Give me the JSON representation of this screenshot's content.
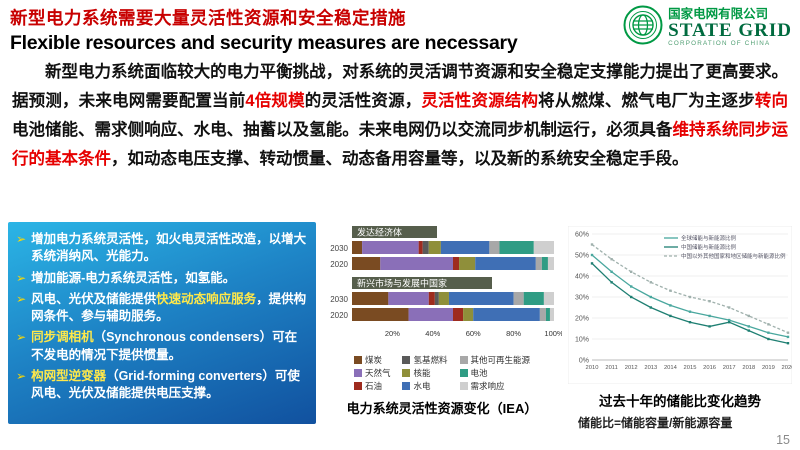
{
  "header": {
    "title_zh": "新型电力系统需要大量灵活性资源和安全稳定措施",
    "title_en": "Flexible resources and security measures are necessary",
    "logo": {
      "company_zh": "国家电网有限公司",
      "company_en": "STATE GRID",
      "company_sub": "CORPORATION OF CHINA",
      "brand_green": "#009944"
    }
  },
  "paragraph": {
    "segments": [
      {
        "text": "新型电力系统面临较大的电力平衡挑战，对系统的灵活调节资源和安全稳定支撑能力提出了更高要求。据预测，未来电网需要配置当前",
        "style": "normal"
      },
      {
        "text": "4倍规模",
        "style": "red"
      },
      {
        "text": "的灵活性资源，",
        "style": "normal"
      },
      {
        "text": "灵活性资源结构",
        "style": "red"
      },
      {
        "text": "将从燃煤、燃气电厂为主逐步",
        "style": "normal"
      },
      {
        "text": "转向",
        "style": "red"
      },
      {
        "text": "电池储能、需求侧响应、水电、抽蓄以及氢能。未来电网仍以交流同步机制运行，必须具备",
        "style": "normal"
      },
      {
        "text": "维持系统同步运行的基本条件",
        "style": "red"
      },
      {
        "text": "，如动态电压支撑、转动惯量、动态备用容量等，以及新的系统安全稳定手段。",
        "style": "normal"
      }
    ]
  },
  "bullet_arrow": "➢",
  "bullets": [
    {
      "segments": [
        {
          "text": "增加电力系统灵活性，如火电灵活性改造，以增大系统消纳风、光能力。",
          "highlight": false
        }
      ]
    },
    {
      "segments": [
        {
          "text": "增加能源-电力系统灵活性，如氢能。",
          "highlight": false
        }
      ]
    },
    {
      "segments": [
        {
          "text": "风电、光伏及储能提供",
          "highlight": false
        },
        {
          "text": "快速动态响应服务",
          "highlight": true
        },
        {
          "text": "，提供构网条件、参与辅助服务。",
          "highlight": false
        }
      ]
    },
    {
      "segments": [
        {
          "text": "同步调相机",
          "highlight": true
        },
        {
          "text": "（Synchronous condensers）可在不发电的情况下提供惯量。",
          "highlight": false
        }
      ]
    },
    {
      "segments": [
        {
          "text": "构网型逆变器",
          "highlight": true
        },
        {
          "text": "（Grid-forming converters）可使风电、光伏及储能提供电压支撑。",
          "highlight": false
        }
      ]
    }
  ],
  "chart_data": [
    {
      "type": "bar",
      "title": "电力系统灵活性资源变化（IEA）",
      "orientation": "horizontal-stacked",
      "unit": "%",
      "header_bg": "#565e4c",
      "stack_order": [
        "煤炭",
        "天然气",
        "石油",
        "氢基燃料",
        "核能",
        "水电",
        "其他可再生能源",
        "电池",
        "需求响应"
      ],
      "colors": [
        "#7a4b22",
        "#8a6fb8",
        "#9e2b1e",
        "#5a5a5a",
        "#8f8f3a",
        "#3f6fb5",
        "#a8a8a8",
        "#2f9c84",
        "#cfcfcf"
      ],
      "groups": [
        {
          "label": "发达经济体",
          "bars": [
            {
              "year": "2030",
              "values": [
                5,
                28,
                2,
                3,
                6,
                24,
                5,
                17,
                10
              ]
            },
            {
              "year": "2020",
              "values": [
                14,
                36,
                3,
                0,
                8,
                30,
                3,
                3,
                3
              ]
            }
          ]
        },
        {
          "label": "新兴市场与发展中国家",
          "bars": [
            {
              "year": "2030",
              "values": [
                18,
                20,
                3,
                2,
                5,
                32,
                5,
                10,
                5
              ]
            },
            {
              "year": "2020",
              "values": [
                28,
                22,
                5,
                0,
                5,
                33,
                3,
                2,
                2
              ]
            }
          ]
        }
      ],
      "x_ticks": [
        {
          "v": 20,
          "label": "20%"
        },
        {
          "v": 40,
          "label": "40%"
        },
        {
          "v": 60,
          "label": "60%"
        },
        {
          "v": 80,
          "label": "80%"
        },
        {
          "v": 100,
          "label": "100%"
        }
      ],
      "xlim": [
        0,
        100
      ]
    },
    {
      "type": "line",
      "title": "过去十年的储能比变化趋势",
      "x": [
        2010,
        2011,
        2012,
        2013,
        2014,
        2015,
        2016,
        2017,
        2018,
        2019,
        2020
      ],
      "ylim": [
        0,
        60
      ],
      "y_ticks": [
        "0%",
        "10%",
        "20%",
        "30%",
        "40%",
        "50%",
        "60%"
      ],
      "grid": true,
      "legend_position": "top-right",
      "series": [
        {
          "name": "全球储能与新能源比例",
          "color": "#49a79e",
          "dash": false,
          "values": [
            50,
            42,
            35,
            30,
            26,
            23,
            21,
            19,
            16,
            13,
            11
          ]
        },
        {
          "name": "中国储能与新能源比例",
          "color": "#1e7f72",
          "dash": false,
          "values": [
            46,
            37,
            30,
            25,
            21,
            18,
            16,
            18,
            14,
            10,
            8
          ]
        },
        {
          "name": "中国以外其他国家和地区储能与新能源比例",
          "color": "#9fb0ac",
          "dash": true,
          "values": [
            55,
            48,
            42,
            37,
            33,
            30,
            28,
            25,
            21,
            17,
            13
          ]
        }
      ]
    }
  ],
  "footer": {
    "formula": "储能比=储能容量/新能源容量",
    "page_number": "15"
  }
}
